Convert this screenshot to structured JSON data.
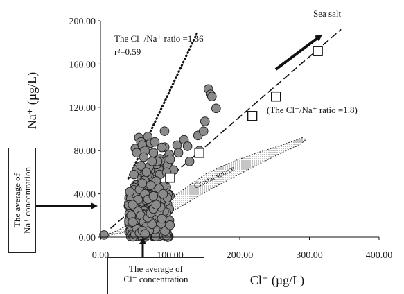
{
  "chart_data": {
    "type": "scatter",
    "xlabel": "Cl⁻ (µg/L)",
    "ylabel": "Na⁺ (µg/L)",
    "xlim": [
      0,
      400
    ],
    "ylim": [
      0,
      200
    ],
    "x_ticks": [
      "0.00",
      "100.00",
      "200.00",
      "300.00",
      "400.00"
    ],
    "y_ticks": [
      "0.00",
      "40.00",
      "80.00",
      "120.00",
      "160.00",
      "200.00"
    ],
    "x_tick_values": [
      0,
      100,
      200,
      300,
      400
    ],
    "y_tick_values": [
      0,
      40,
      80,
      120,
      160,
      200
    ],
    "series": [
      {
        "marker": "filled-circle-gray",
        "points": [
          [
            5,
            2
          ],
          [
            42,
            42
          ],
          [
            46,
            30
          ],
          [
            50,
            82
          ],
          [
            52,
            78
          ],
          [
            55,
            92
          ],
          [
            58,
            88
          ],
          [
            60,
            85
          ],
          [
            64,
            80
          ],
          [
            68,
            93
          ],
          [
            72,
            87
          ],
          [
            76,
            78
          ],
          [
            82,
            70
          ],
          [
            88,
            83
          ],
          [
            92,
            98
          ],
          [
            96,
            66
          ],
          [
            100,
            72
          ],
          [
            105,
            62
          ],
          [
            110,
            85
          ],
          [
            112,
            78
          ],
          [
            120,
            90
          ],
          [
            125,
            84
          ],
          [
            128,
            70
          ],
          [
            140,
            94
          ],
          [
            142,
            80
          ],
          [
            148,
            98
          ],
          [
            150,
            107
          ],
          [
            155,
            137
          ],
          [
            158,
            132
          ],
          [
            160,
            130
          ],
          [
            166,
            119
          ],
          [
            85,
            58
          ],
          [
            95,
            60
          ],
          [
            78,
            88
          ],
          [
            70,
            65
          ],
          [
            52,
            62
          ],
          [
            48,
            58
          ],
          [
            58,
            66
          ],
          [
            62,
            74
          ],
          [
            66,
            60
          ],
          [
            74,
            70
          ],
          [
            80,
            52
          ],
          [
            84,
            45
          ],
          [
            90,
            40
          ],
          [
            88,
            17
          ],
          [
            56,
            44
          ],
          [
            60,
            50
          ],
          [
            64,
            40
          ],
          [
            68,
            35
          ],
          [
            72,
            48
          ],
          [
            76,
            38
          ],
          [
            54,
            24
          ],
          [
            58,
            20
          ],
          [
            62,
            14
          ],
          [
            66,
            10
          ],
          [
            70,
            6
          ],
          [
            74,
            12
          ],
          [
            48,
            12
          ],
          [
            52,
            8
          ],
          [
            56,
            4
          ],
          [
            60,
            6
          ],
          [
            64,
            3
          ],
          [
            68,
            18
          ],
          [
            72,
            22
          ],
          [
            76,
            26
          ],
          [
            80,
            30
          ],
          [
            44,
            20
          ],
          [
            46,
            14
          ]
        ]
      },
      {
        "marker": "open-square",
        "points": [
          [
            100,
            55
          ],
          [
            142,
            78
          ],
          [
            218,
            112
          ],
          [
            252,
            130
          ],
          [
            312,
            172
          ]
        ]
      }
    ],
    "cloud": {
      "note": "dense cluster of gray circles",
      "x_range": [
        40,
        100
      ],
      "y_range": [
        0,
        90
      ]
    },
    "lines": [
      {
        "style": "dotted",
        "slope": 1.36,
        "x_range": [
          40,
          140
        ]
      },
      {
        "style": "dashed",
        "slope": 0.556,
        "x_range": [
          15,
          345
        ]
      }
    ],
    "region": {
      "name": "Crustal source",
      "polygon": [
        [
          0,
          0
        ],
        [
          60,
          8
        ],
        [
          120,
          30
        ],
        [
          160,
          45
        ],
        [
          220,
          65
        ],
        [
          260,
          78
        ],
        [
          285,
          85
        ],
        [
          295,
          90
        ],
        [
          290,
          92
        ],
        [
          260,
          85
        ],
        [
          225,
          78
        ],
        [
          190,
          70
        ],
        [
          150,
          58
        ],
        [
          110,
          40
        ],
        [
          75,
          22
        ],
        [
          20,
          5
        ]
      ]
    },
    "annotations": {
      "dotted_ratio": "The Cl⁻/Na⁺ ratio =1.36",
      "r2": "r²=0.59",
      "seasalt_ratio": "(The Cl⁻/Na⁺ ratio =1.8)",
      "sea_salt": "Sea salt",
      "crustal": "Crustal source"
    },
    "boxes": {
      "na_avg": [
        "The average of",
        "Na⁺ concentration"
      ],
      "cl_avg": [
        "The average of",
        "Cl⁻ concentration"
      ]
    }
  }
}
